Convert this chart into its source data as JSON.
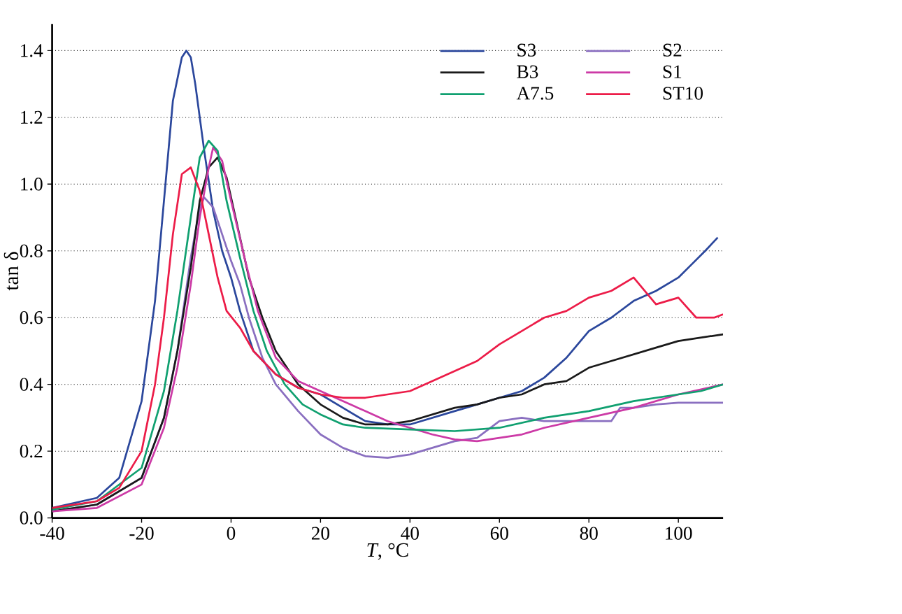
{
  "chart_data": {
    "type": "line",
    "xlabel": "*T*, °C",
    "ylabel": "tan δ",
    "xlim": [
      -40,
      110
    ],
    "ylim": [
      0,
      1.48
    ],
    "xticks": [
      -40,
      -20,
      0,
      20,
      40,
      60,
      80,
      100
    ],
    "yticks": [
      {
        "value": 0,
        "label": "0.0"
      },
      {
        "value": 0.2,
        "label": "0.2"
      },
      {
        "value": 0.4,
        "label": "0.4"
      },
      {
        "value": 0.6,
        "label": "0.6"
      },
      {
        "value": 0.8,
        "label": "0.8"
      },
      {
        "value": 1.0,
        "label": "1.0"
      },
      {
        "value": 1.2,
        "label": "1.2"
      },
      {
        "value": 1.4,
        "label": "1.4"
      }
    ],
    "grid": "y",
    "legend": "top right",
    "marker": "none",
    "line_style": "solid",
    "series": [
      {
        "name": "S3",
        "color": "#2b479c",
        "x": [
          -40,
          -30,
          -25,
          -20,
          -17,
          -15,
          -13,
          -11,
          -10,
          -9,
          -8,
          -6,
          -4,
          -2,
          0,
          2,
          5,
          10,
          15,
          20,
          25,
          30,
          35,
          40,
          45,
          50,
          55,
          60,
          65,
          70,
          75,
          80,
          85,
          90,
          95,
          100,
          103,
          106,
          108.8
        ],
        "values": [
          0.03,
          0.06,
          0.12,
          0.35,
          0.65,
          0.95,
          1.25,
          1.38,
          1.4,
          1.38,
          1.3,
          1.1,
          0.92,
          0.8,
          0.72,
          0.62,
          0.5,
          0.43,
          0.39,
          0.37,
          0.33,
          0.29,
          0.28,
          0.28,
          0.3,
          0.32,
          0.34,
          0.36,
          0.38,
          0.42,
          0.48,
          0.56,
          0.6,
          0.65,
          0.68,
          0.72,
          0.76,
          0.8,
          0.84
        ]
      },
      {
        "name": "S2",
        "color": "#8a6fc0",
        "x": [
          -40,
          -30,
          -20,
          -15,
          -12,
          -9,
          -7,
          -6,
          -4,
          -2,
          0,
          2,
          4,
          7,
          10,
          15,
          20,
          25,
          30,
          35,
          40,
          45,
          50,
          55,
          60,
          65,
          70,
          75,
          80,
          85,
          87,
          90,
          95,
          100,
          110
        ],
        "values": [
          0.02,
          0.04,
          0.12,
          0.3,
          0.5,
          0.78,
          0.93,
          0.96,
          0.93,
          0.85,
          0.77,
          0.7,
          0.6,
          0.48,
          0.4,
          0.32,
          0.25,
          0.21,
          0.185,
          0.18,
          0.19,
          0.21,
          0.23,
          0.24,
          0.29,
          0.3,
          0.29,
          0.29,
          0.29,
          0.29,
          0.33,
          0.33,
          0.34,
          0.345,
          0.345
        ]
      },
      {
        "name": "B3",
        "color": "#1a1a1a",
        "x": [
          -40,
          -30,
          -20,
          -15,
          -12,
          -9,
          -7,
          -5,
          -3,
          -1,
          1,
          4,
          7,
          10,
          15,
          20,
          25,
          30,
          35,
          40,
          45,
          50,
          55,
          60,
          65,
          70,
          75,
          80,
          85,
          90,
          95,
          100,
          105,
          110
        ],
        "values": [
          0.02,
          0.04,
          0.12,
          0.3,
          0.5,
          0.75,
          0.95,
          1.05,
          1.08,
          1.02,
          0.9,
          0.72,
          0.6,
          0.5,
          0.4,
          0.34,
          0.3,
          0.28,
          0.28,
          0.29,
          0.31,
          0.33,
          0.34,
          0.36,
          0.37,
          0.4,
          0.41,
          0.45,
          0.47,
          0.49,
          0.51,
          0.53,
          0.54,
          0.55
        ]
      },
      {
        "name": "S1",
        "color": "#cc3aa6",
        "x": [
          -40,
          -30,
          -20,
          -15,
          -12,
          -9,
          -7,
          -5,
          -4,
          -2,
          0,
          3,
          6,
          10,
          15,
          20,
          25,
          30,
          35,
          40,
          45,
          50,
          55,
          60,
          65,
          70,
          80,
          90,
          100,
          110
        ],
        "values": [
          0.02,
          0.03,
          0.1,
          0.27,
          0.45,
          0.7,
          0.9,
          1.05,
          1.11,
          1.07,
          0.95,
          0.78,
          0.62,
          0.48,
          0.41,
          0.38,
          0.35,
          0.32,
          0.29,
          0.27,
          0.25,
          0.235,
          0.23,
          0.24,
          0.25,
          0.27,
          0.3,
          0.33,
          0.37,
          0.4
        ]
      },
      {
        "name": "A7.5",
        "color": "#10a070",
        "x": [
          -40,
          -30,
          -20,
          -15,
          -12,
          -9,
          -7,
          -5,
          -3,
          -1,
          2,
          5,
          8,
          12,
          16,
          20,
          25,
          30,
          40,
          50,
          60,
          70,
          80,
          90,
          100,
          105,
          110
        ],
        "values": [
          0.025,
          0.05,
          0.15,
          0.38,
          0.62,
          0.9,
          1.08,
          1.13,
          1.1,
          0.95,
          0.78,
          0.62,
          0.5,
          0.4,
          0.34,
          0.31,
          0.28,
          0.27,
          0.265,
          0.26,
          0.27,
          0.3,
          0.32,
          0.35,
          0.37,
          0.38,
          0.4
        ]
      },
      {
        "name": "ST10",
        "color": "#ec1c48",
        "x": [
          -40,
          -30,
          -25,
          -20,
          -17,
          -15,
          -13,
          -11,
          -9,
          -7,
          -5,
          -3,
          -1,
          2,
          5,
          10,
          15,
          20,
          25,
          30,
          35,
          40,
          45,
          50,
          55,
          60,
          65,
          70,
          75,
          80,
          85,
          90,
          95,
          100,
          104,
          108,
          110
        ],
        "values": [
          0.03,
          0.05,
          0.09,
          0.2,
          0.4,
          0.6,
          0.85,
          1.03,
          1.05,
          0.98,
          0.85,
          0.72,
          0.62,
          0.57,
          0.5,
          0.43,
          0.39,
          0.37,
          0.36,
          0.36,
          0.37,
          0.38,
          0.41,
          0.44,
          0.47,
          0.52,
          0.56,
          0.6,
          0.62,
          0.66,
          0.68,
          0.72,
          0.64,
          0.66,
          0.6,
          0.6,
          0.61
        ]
      }
    ]
  }
}
